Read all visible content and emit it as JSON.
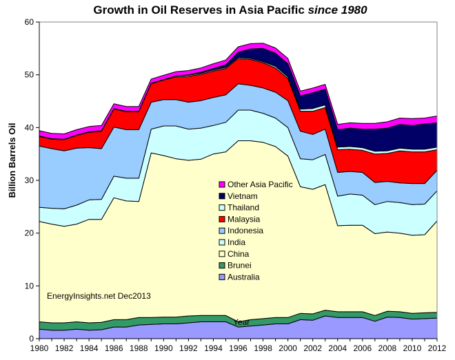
{
  "chart_data": {
    "type": "area",
    "stacked": true,
    "title_main": "Growth in Oil Reserves  in Asia Pacific ",
    "title_italic": "since 1980",
    "ylabel": "Billion Barrels Oil",
    "xlabel": "Year",
    "ylim": [
      0,
      60
    ],
    "yticks": [
      0,
      10,
      20,
      30,
      40,
      50,
      60
    ],
    "xlim": [
      1980,
      2012
    ],
    "xticks": [
      1980,
      1982,
      1984,
      1986,
      1988,
      1990,
      1992,
      1994,
      1996,
      1998,
      2000,
      2002,
      2004,
      2006,
      2008,
      2010,
      2012
    ],
    "grid": false,
    "legend_position": "center",
    "note": "EnergyInsights.net Dec2013",
    "x": [
      1980,
      1981,
      1982,
      1983,
      1984,
      1985,
      1986,
      1987,
      1988,
      1989,
      1990,
      1991,
      1992,
      1993,
      1994,
      1995,
      1996,
      1997,
      1998,
      1999,
      2000,
      2001,
      2002,
      2003,
      2004,
      2005,
      2006,
      2007,
      2008,
      2009,
      2010,
      2011,
      2012
    ],
    "series": [
      {
        "name": "Australia",
        "color": "#9999ff",
        "values": [
          1.8,
          1.6,
          1.6,
          1.8,
          1.6,
          1.7,
          2.2,
          2.2,
          2.6,
          2.7,
          2.8,
          2.8,
          3.0,
          3.2,
          3.2,
          3.2,
          2.2,
          2.4,
          2.6,
          2.8,
          2.8,
          3.6,
          3.5,
          4.3,
          4.0,
          4.0,
          4.0,
          3.3,
          4.1,
          4.0,
          3.7,
          3.8,
          3.9
        ]
      },
      {
        "name": "Brunei",
        "color": "#339966",
        "values": [
          1.4,
          1.4,
          1.4,
          1.4,
          1.4,
          1.4,
          1.4,
          1.4,
          1.4,
          1.3,
          1.3,
          1.3,
          1.3,
          1.2,
          1.2,
          1.2,
          1.0,
          1.2,
          1.2,
          1.2,
          1.2,
          1.2,
          1.2,
          1.1,
          1.1,
          1.1,
          1.1,
          1.1,
          1.1,
          1.1,
          1.1,
          1.1,
          1.1
        ]
      },
      {
        "name": "China",
        "color": "#ffffcc",
        "values": [
          19.0,
          18.7,
          18.3,
          18.5,
          19.6,
          19.5,
          23.1,
          22.5,
          22.0,
          31.2,
          30.6,
          30.0,
          29.5,
          29.6,
          30.6,
          31.0,
          34.3,
          33.9,
          33.4,
          32.4,
          30.6,
          24.0,
          23.6,
          23.8,
          16.3,
          16.4,
          16.4,
          15.5,
          15.0,
          14.9,
          14.8,
          14.8,
          17.3
        ]
      },
      {
        "name": "India",
        "color": "#ccffff",
        "values": [
          2.7,
          3.0,
          3.3,
          3.6,
          3.7,
          3.8,
          4.1,
          4.3,
          4.4,
          4.5,
          5.6,
          6.2,
          5.9,
          5.9,
          5.4,
          5.6,
          5.8,
          5.8,
          5.5,
          5.4,
          5.4,
          5.3,
          5.6,
          5.7,
          5.6,
          5.9,
          5.7,
          5.5,
          5.8,
          5.8,
          5.8,
          5.8,
          5.7
        ]
      },
      {
        "name": "Indonesia",
        "color": "#99ccff",
        "values": [
          11.6,
          11.3,
          11.0,
          10.8,
          9.9,
          9.6,
          9.3,
          9.2,
          9.2,
          5.1,
          5.0,
          5.0,
          5.1,
          5.2,
          5.3,
          5.2,
          5.0,
          4.7,
          4.8,
          4.9,
          5.1,
          5.2,
          4.8,
          4.8,
          4.5,
          4.3,
          4.3,
          4.2,
          3.8,
          3.7,
          4.0,
          3.9,
          3.9
        ]
      },
      {
        "name": "Malaysia",
        "color": "#ff0000",
        "values": [
          1.8,
          1.8,
          2.1,
          2.4,
          2.9,
          3.3,
          3.4,
          3.4,
          3.4,
          3.5,
          3.7,
          4.3,
          4.9,
          5.0,
          5.0,
          5.0,
          4.8,
          4.9,
          4.8,
          4.6,
          4.2,
          3.8,
          4.4,
          4.1,
          4.3,
          4.2,
          4.2,
          5.4,
          5.3,
          6.1,
          6.0,
          6.0,
          3.9
        ]
      },
      {
        "name": "Thailand",
        "color": "#ccffff",
        "values": [
          0.1,
          0.1,
          0.1,
          0.1,
          0.1,
          0.1,
          0.1,
          0.1,
          0.1,
          0.1,
          0.1,
          0.2,
          0.2,
          0.2,
          0.2,
          0.2,
          0.2,
          0.2,
          0.2,
          0.3,
          0.3,
          0.4,
          0.5,
          0.5,
          0.5,
          0.5,
          0.5,
          0.5,
          0.5,
          0.5,
          0.5,
          0.5,
          0.5
        ]
      },
      {
        "name": "Vietnam",
        "color": "#000066",
        "values": [
          0,
          0,
          0,
          0,
          0,
          0,
          0,
          0,
          0,
          0,
          0,
          0,
          0.1,
          0.2,
          0.3,
          0.5,
          1.0,
          1.8,
          2.5,
          2.5,
          2.5,
          2.5,
          3.0,
          3.0,
          3.3,
          3.5,
          3.5,
          4.2,
          4.3,
          4.5,
          4.5,
          4.8,
          4.6
        ]
      },
      {
        "name": "Other Asia Pacific",
        "color": "#ff00ff",
        "values": [
          1.0,
          1.0,
          1.0,
          1.0,
          1.0,
          1.0,
          0.9,
          0.9,
          0.9,
          0.8,
          0.8,
          0.8,
          0.8,
          0.8,
          0.9,
          0.9,
          1.0,
          1.0,
          1.0,
          1.0,
          1.0,
          0.9,
          0.9,
          0.9,
          1.0,
          1.0,
          1.1,
          1.1,
          1.2,
          1.2,
          1.3,
          1.1,
          1.3
        ]
      }
    ]
  }
}
